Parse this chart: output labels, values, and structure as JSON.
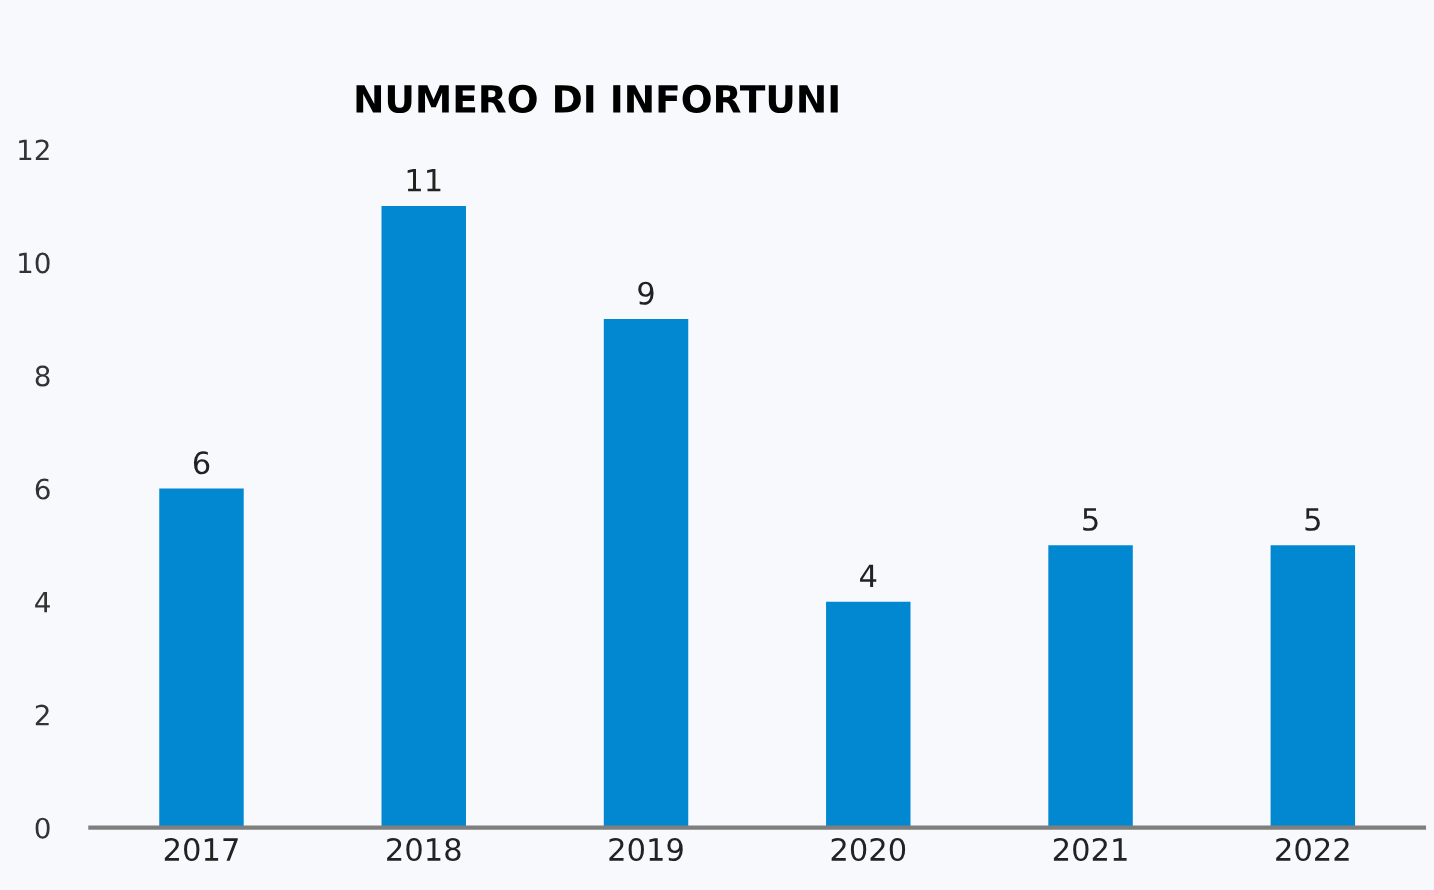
{
  "chart_data": {
    "type": "bar",
    "title": "NUMERO DI INFORTUNI",
    "categories": [
      "2017",
      "2018",
      "2019",
      "2020",
      "2021",
      "2022"
    ],
    "values": [
      6,
      11,
      9,
      4,
      5,
      5
    ],
    "color": "#0288d1",
    "ylim": [
      0,
      12
    ],
    "yticks": [
      0,
      2,
      4,
      6,
      8,
      10,
      12
    ],
    "grid": false,
    "data_labels": true
  }
}
